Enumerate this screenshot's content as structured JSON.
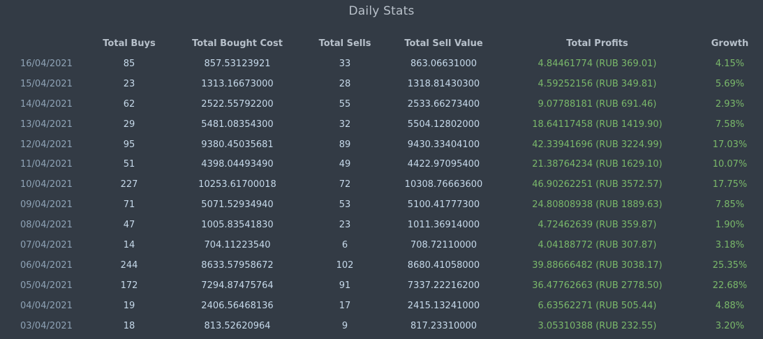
{
  "title": "Daily Stats",
  "colors": {
    "background": "#333b45",
    "header_text": "#b7c0ca",
    "value_text": "#c6d9ea",
    "date_text": "#8fa3b6",
    "positive": "#7ab86a"
  },
  "table": {
    "headers": [
      "",
      "Total Buys",
      "Total Bought Cost",
      "Total Sells",
      "Total Sell Value",
      "Total Profits",
      "Growth"
    ],
    "rows": [
      {
        "date": "16/04/2021",
        "buys": "85",
        "bought_cost": "857.53123921",
        "sells": "33",
        "sell_value": "863.06631000",
        "profits": "4.84461774 (RUB 369.01)",
        "growth": "4.15%"
      },
      {
        "date": "15/04/2021",
        "buys": "23",
        "bought_cost": "1313.16673000",
        "sells": "28",
        "sell_value": "1318.81430300",
        "profits": "4.59252156 (RUB 349.81)",
        "growth": "5.69%"
      },
      {
        "date": "14/04/2021",
        "buys": "62",
        "bought_cost": "2522.55792200",
        "sells": "55",
        "sell_value": "2533.66273400",
        "profits": "9.07788181 (RUB 691.46)",
        "growth": "2.93%"
      },
      {
        "date": "13/04/2021",
        "buys": "29",
        "bought_cost": "5481.08354300",
        "sells": "32",
        "sell_value": "5504.12802000",
        "profits": "18.64117458 (RUB 1419.90)",
        "growth": "7.58%"
      },
      {
        "date": "12/04/2021",
        "buys": "95",
        "bought_cost": "9380.45035681",
        "sells": "89",
        "sell_value": "9430.33404100",
        "profits": "42.33941696 (RUB 3224.99)",
        "growth": "17.03%"
      },
      {
        "date": "11/04/2021",
        "buys": "51",
        "bought_cost": "4398.04493490",
        "sells": "49",
        "sell_value": "4422.97095400",
        "profits": "21.38764234 (RUB 1629.10)",
        "growth": "10.07%"
      },
      {
        "date": "10/04/2021",
        "buys": "227",
        "bought_cost": "10253.61700018",
        "sells": "72",
        "sell_value": "10308.76663600",
        "profits": "46.90262251 (RUB 3572.57)",
        "growth": "17.75%"
      },
      {
        "date": "09/04/2021",
        "buys": "71",
        "bought_cost": "5071.52934940",
        "sells": "53",
        "sell_value": "5100.41777300",
        "profits": "24.80808938 (RUB 1889.63)",
        "growth": "7.85%"
      },
      {
        "date": "08/04/2021",
        "buys": "47",
        "bought_cost": "1005.83541830",
        "sells": "23",
        "sell_value": "1011.36914000",
        "profits": "4.72462639 (RUB 359.87)",
        "growth": "1.90%"
      },
      {
        "date": "07/04/2021",
        "buys": "14",
        "bought_cost": "704.11223540",
        "sells": "6",
        "sell_value": "708.72110000",
        "profits": "4.04188772 (RUB 307.87)",
        "growth": "3.18%"
      },
      {
        "date": "06/04/2021",
        "buys": "244",
        "bought_cost": "8633.57958672",
        "sells": "102",
        "sell_value": "8680.41058000",
        "profits": "39.88666482 (RUB 3038.17)",
        "growth": "25.35%"
      },
      {
        "date": "05/04/2021",
        "buys": "172",
        "bought_cost": "7294.87475764",
        "sells": "91",
        "sell_value": "7337.22216200",
        "profits": "36.47762663 (RUB 2778.50)",
        "growth": "22.68%"
      },
      {
        "date": "04/04/2021",
        "buys": "19",
        "bought_cost": "2406.56468136",
        "sells": "17",
        "sell_value": "2415.13241000",
        "profits": "6.63562271 (RUB 505.44)",
        "growth": "4.88%"
      },
      {
        "date": "03/04/2021",
        "buys": "18",
        "bought_cost": "813.52620964",
        "sells": "9",
        "sell_value": "817.23310000",
        "profits": "3.05310388 (RUB 232.55)",
        "growth": "3.20%"
      }
    ]
  }
}
